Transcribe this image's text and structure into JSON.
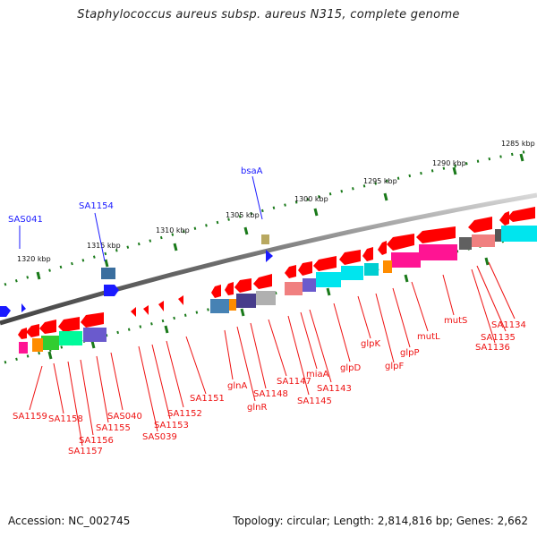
{
  "title": "Staphylococcus aureus subsp. aureus N315, complete genome",
  "footer": {
    "accession": "Accession: NC_002745",
    "topology": "Topology: circular; Length: 2,814,816 bp; Genes: 2,662"
  },
  "colors": {
    "backbone": "#888888",
    "tick": "#1a7a1a",
    "forward_label": "#1a1aff",
    "reverse_label": "#ee1111",
    "gene": "#ff0000"
  },
  "scale_labels": [
    "1285 kbp",
    "1290 kbp",
    "1295 kbp",
    "1300 kbp",
    "1305 kbp",
    "1310 kbp",
    "1315 kbp",
    "1320 kbp"
  ],
  "forward_labels": [
    "bsaA",
    "SA1154",
    "SAS041"
  ],
  "reverse_labels": [
    "SA1134",
    "SA1135",
    "SA1136",
    "mutS",
    "mutL",
    "glpP",
    "glpF",
    "glpK",
    "glpD",
    "SA1143",
    "miaA",
    "SA1145",
    "SA1147",
    "SA1148",
    "glnR",
    "glnA",
    "SA1151",
    "SA1152",
    "SA1153",
    "SAS039",
    "SAS040",
    "SA1155",
    "SA1156",
    "SA1157",
    "SA1158",
    "SA1159"
  ]
}
